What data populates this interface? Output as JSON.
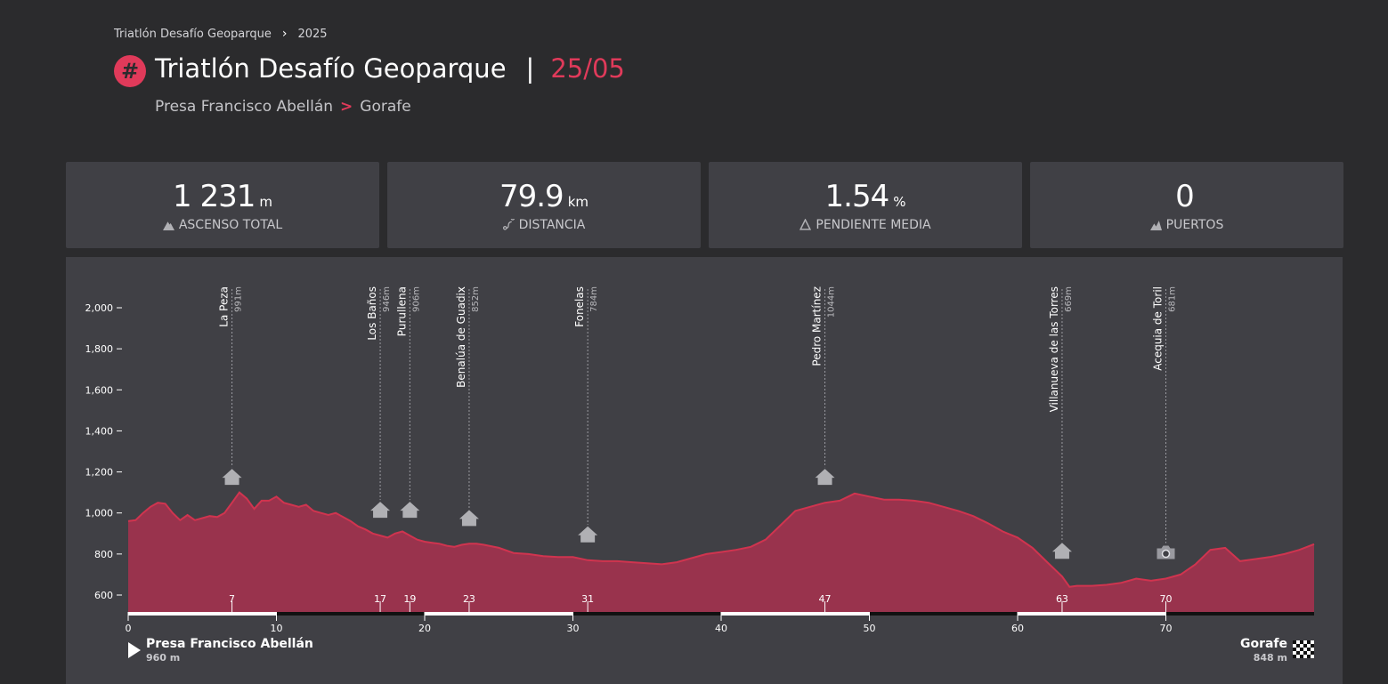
{
  "breadcrumb": {
    "parent": "Triatlón Desafío Geoparque",
    "current": "2025"
  },
  "header": {
    "hash_icon": "hashtag-icon",
    "title": "Triatlón Desafío Geoparque",
    "separator": "|",
    "date": "25/05",
    "route_start": "Presa Francisco Abellán",
    "route_arrow": ">",
    "route_end": "Gorafe"
  },
  "stats": [
    {
      "value": "1 231",
      "unit": "m",
      "label": "ASCENSO TOTAL",
      "icon": "mountain-icon"
    },
    {
      "value": "79.9",
      "unit": "km",
      "label": "DISTANCIA",
      "icon": "route-icon"
    },
    {
      "value": "1.54",
      "unit": "%",
      "label": "PENDIENTE MEDIA",
      "icon": "slope-icon"
    },
    {
      "value": "0",
      "unit": "",
      "label": "PUERTOS",
      "icon": "peaks-icon"
    }
  ],
  "colors": {
    "accent": "#e03a5a",
    "fill": "#99334d",
    "line": "#d0344f",
    "card": "#404045",
    "background": "#2b2b2d"
  },
  "chart_data": {
    "type": "area",
    "ylim": [
      550,
      2100
    ],
    "xlim": [
      0,
      80
    ],
    "yticks": [
      600,
      800,
      1000,
      1200,
      1400,
      1600,
      1800,
      2000
    ],
    "ytick_labels": [
      "600",
      "800",
      "1,000",
      "1,200",
      "1,400",
      "1,600",
      "1,800",
      "2,000"
    ],
    "xticks": [
      0,
      10,
      20,
      30,
      40,
      50,
      60,
      70
    ],
    "profile": {
      "x": [
        0,
        0.5,
        1,
        1.5,
        2,
        2.5,
        3,
        3.5,
        4,
        4.5,
        5,
        5.5,
        6,
        6.5,
        7,
        7.5,
        8,
        8.5,
        9,
        9.5,
        10,
        10.5,
        11,
        11.5,
        12,
        12.5,
        13,
        13.5,
        14,
        14.5,
        15,
        15.5,
        16,
        16.5,
        17,
        17.5,
        18,
        18.5,
        19,
        19.5,
        20,
        20.5,
        21,
        21.5,
        22,
        22.5,
        23,
        23.5,
        24,
        25,
        26,
        27,
        28,
        29,
        30,
        31,
        32,
        33,
        34,
        35,
        36,
        37,
        38,
        39,
        40,
        41,
        42,
        43,
        44,
        45,
        46,
        47,
        48,
        49,
        50,
        51,
        52,
        53,
        54,
        55,
        56,
        57,
        58,
        59,
        60,
        61,
        62,
        63,
        63.5,
        64,
        65,
        66,
        67,
        67.5,
        68,
        69,
        70,
        71,
        72,
        73,
        74,
        75,
        76,
        77,
        78,
        79,
        80
      ],
      "y": [
        960,
        965,
        1000,
        1030,
        1050,
        1045,
        1000,
        965,
        990,
        965,
        975,
        985,
        980,
        1000,
        1050,
        1100,
        1070,
        1020,
        1060,
        1060,
        1080,
        1050,
        1040,
        1030,
        1040,
        1010,
        1000,
        990,
        1000,
        980,
        960,
        935,
        920,
        900,
        890,
        880,
        900,
        910,
        890,
        870,
        860,
        855,
        850,
        840,
        835,
        845,
        850,
        850,
        845,
        830,
        805,
        800,
        790,
        785,
        785,
        770,
        765,
        765,
        760,
        755,
        750,
        760,
        780,
        800,
        810,
        820,
        835,
        870,
        940,
        1010,
        1030,
        1050,
        1060,
        1095,
        1080,
        1065,
        1065,
        1060,
        1050,
        1030,
        1010,
        985,
        950,
        910,
        880,
        830,
        760,
        690,
        640,
        645,
        645,
        650,
        660,
        670,
        680,
        670,
        680,
        700,
        750,
        820,
        830,
        765,
        775,
        785,
        800,
        820,
        848
      ]
    },
    "waypoints": [
      {
        "name": "La Peza",
        "km": 7,
        "alt": "991m",
        "icon": "town-icon"
      },
      {
        "name": "Los Baños",
        "km": 17,
        "alt": "946m",
        "icon": "town-icon"
      },
      {
        "name": "Purullena",
        "km": 19,
        "alt": "906m",
        "icon": "town-icon"
      },
      {
        "name": "Benalúa de Guadix",
        "km": 23,
        "alt": "852m",
        "icon": "town-icon"
      },
      {
        "name": "Fonelas",
        "km": 31,
        "alt": "784m",
        "icon": "town-icon"
      },
      {
        "name": "Pedro Martínez",
        "km": 47,
        "alt": "1044m",
        "icon": "town-icon"
      },
      {
        "name": "Villanueva de las Torres",
        "km": 63,
        "alt": "669m",
        "icon": "town-icon"
      },
      {
        "name": "Acequia de Toril",
        "km": 70,
        "alt": "681m",
        "icon": "camera-icon"
      }
    ]
  },
  "endpoints": {
    "start": {
      "name": "Presa Francisco Abellán",
      "alt": "960 m"
    },
    "end": {
      "name": "Gorafe",
      "alt": "848 m"
    }
  }
}
